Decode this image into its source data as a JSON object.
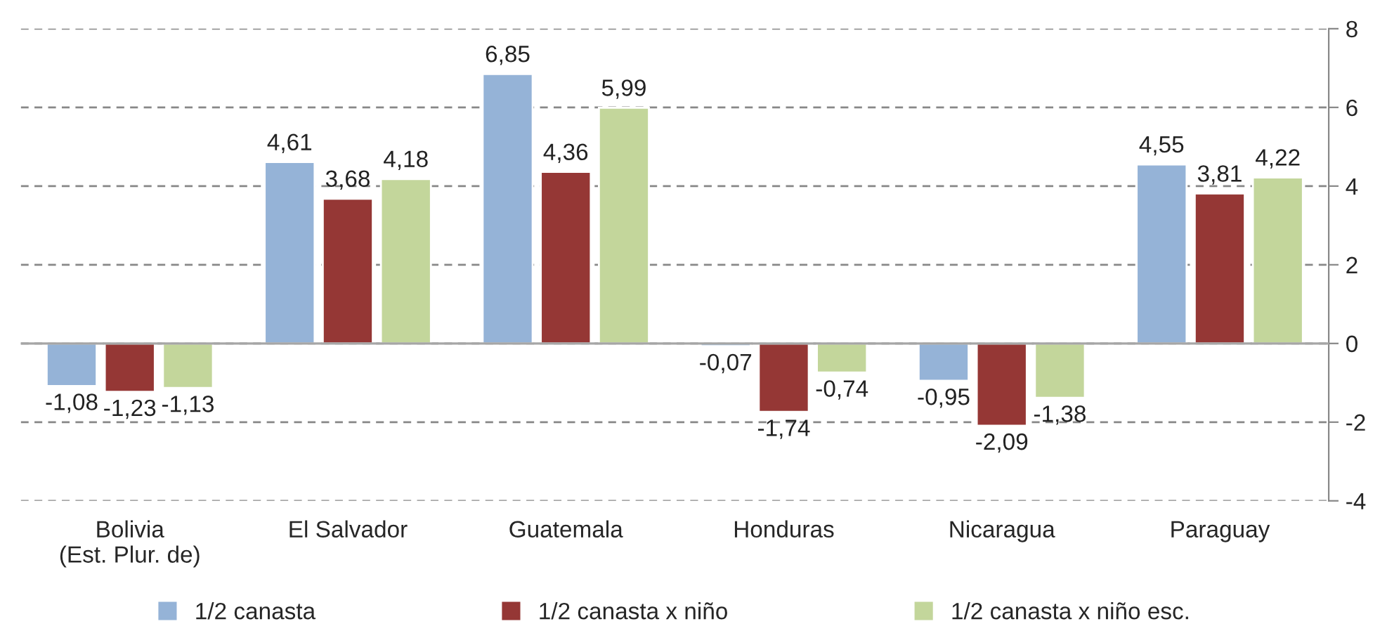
{
  "chart_data": {
    "type": "bar",
    "categories": [
      "Bolivia\n(Est. Plur. de)",
      "El Salvador",
      "Guatemala",
      "Honduras",
      "Nicaragua",
      "Paraguay"
    ],
    "series": [
      {
        "name": "1/2 canasta",
        "color": "#95b3d7",
        "values": [
          -1.08,
          4.61,
          6.85,
          -0.07,
          -0.95,
          4.55
        ],
        "value_labels": [
          "-1,08",
          "4,61",
          "6,85",
          "-0,07",
          "-0,95",
          "4,55"
        ]
      },
      {
        "name": "1/2 canasta x niño",
        "color": "#953735",
        "values": [
          -1.23,
          3.68,
          4.36,
          -1.74,
          -2.09,
          3.81
        ],
        "value_labels": [
          "-1,23",
          "3,68",
          "4,36",
          "-1,74",
          "-2,09",
          "3,81"
        ]
      },
      {
        "name": "1/2 canasta x niño esc.",
        "color": "#c3d69b",
        "values": [
          -1.13,
          4.18,
          5.99,
          -0.74,
          -1.38,
          4.22
        ],
        "value_labels": [
          "-1,13",
          "4,18",
          "5,99",
          "-0,74",
          "-1,38",
          "4,22"
        ]
      }
    ],
    "ylim": [
      -4,
      8
    ],
    "yticks": [
      -4,
      -2,
      0,
      2,
      4,
      6,
      8
    ],
    "grid": "y",
    "legend": "bottom",
    "ref_lines": [
      {
        "axis": "y",
        "value": 0,
        "color": "#a6a6a6"
      }
    ]
  }
}
